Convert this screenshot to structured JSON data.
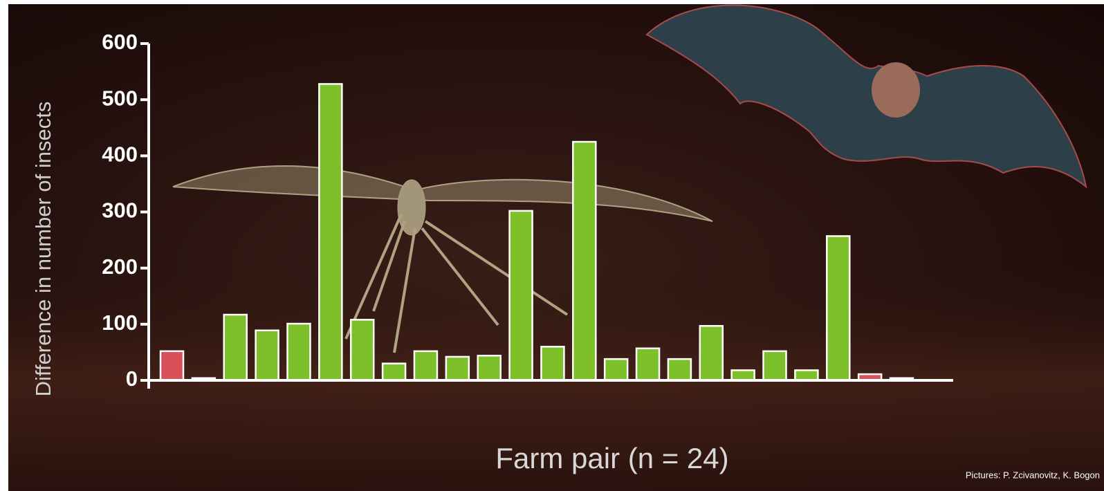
{
  "chart_data": {
    "type": "bar",
    "ylabel": "Difference in number of insects",
    "xlabel": "Farm pair (n = 24)",
    "credit": "Pictures: P. Zcivanovitz, K. Bogon",
    "values": [
      52,
      4,
      117,
      89,
      101,
      528,
      108,
      30,
      52,
      42,
      44,
      302,
      60,
      425,
      38,
      57,
      38,
      97,
      18,
      52,
      18,
      257,
      11,
      4
    ],
    "colors": [
      "#d9505a",
      "#f2eeee",
      "#7dc02a",
      "#7dc02a",
      "#7dc02a",
      "#7dc02a",
      "#7dc02a",
      "#7dc02a",
      "#7dc02a",
      "#7dc02a",
      "#7dc02a",
      "#7dc02a",
      "#7dc02a",
      "#7dc02a",
      "#7dc02a",
      "#7dc02a",
      "#7dc02a",
      "#7dc02a",
      "#7dc02a",
      "#7dc02a",
      "#7dc02a",
      "#7dc02a",
      "#d9505a",
      "#f2eeee"
    ],
    "ylim": [
      0,
      600
    ],
    "yticks": [
      0,
      100,
      200,
      300,
      400,
      500,
      600
    ]
  }
}
